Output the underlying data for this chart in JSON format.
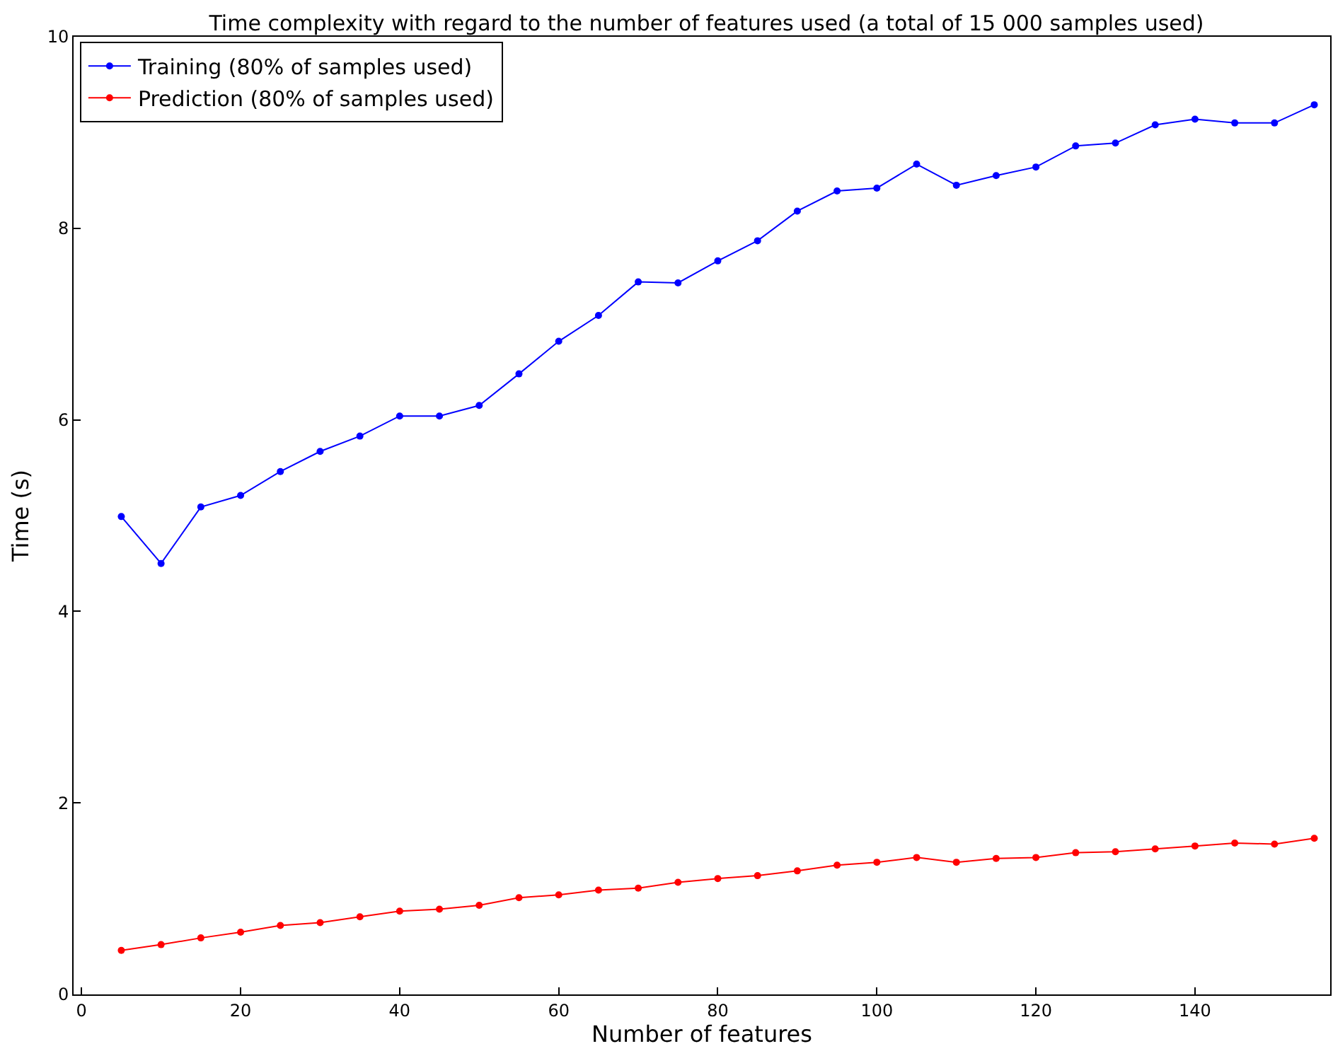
{
  "chart_data": {
    "type": "line",
    "title": "Time complexity with regard to the number of features used (a total of 15 000 samples used)",
    "xlabel": "Number of features",
    "ylabel": "Time (s)",
    "x": [
      5,
      10,
      15,
      20,
      25,
      30,
      35,
      40,
      45,
      50,
      55,
      60,
      65,
      70,
      75,
      80,
      85,
      90,
      95,
      100,
      105,
      110,
      115,
      120,
      125,
      130,
      135,
      140,
      145,
      150,
      155
    ],
    "series": [
      {
        "name": "Training (80% of samples used)",
        "color": "#0000ff",
        "values": [
          4.99,
          4.5,
          5.09,
          5.21,
          5.46,
          5.67,
          5.83,
          6.04,
          6.04,
          6.15,
          6.48,
          6.82,
          7.09,
          7.44,
          7.43,
          7.66,
          7.87,
          8.18,
          8.39,
          8.42,
          8.67,
          8.45,
          8.55,
          8.64,
          8.86,
          8.89,
          9.08,
          9.14,
          9.1,
          9.1,
          9.29
        ]
      },
      {
        "name": "Prediction (80% of samples used)",
        "color": "#ff0000",
        "values": [
          0.46,
          0.52,
          0.59,
          0.65,
          0.72,
          0.75,
          0.81,
          0.87,
          0.89,
          0.93,
          1.01,
          1.04,
          1.09,
          1.11,
          1.17,
          1.21,
          1.24,
          1.29,
          1.35,
          1.38,
          1.43,
          1.38,
          1.42,
          1.43,
          1.48,
          1.49,
          1.52,
          1.55,
          1.58,
          1.57,
          1.63
        ]
      }
    ],
    "xlim": [
      -1,
      157
    ],
    "xticks": [
      0,
      20,
      40,
      60,
      80,
      100,
      120,
      140
    ],
    "ylim": [
      0,
      10
    ],
    "yticks": [
      0,
      2,
      4,
      6,
      8,
      10
    ],
    "legend": "top left",
    "marker": "circle",
    "line_style": "solid"
  }
}
